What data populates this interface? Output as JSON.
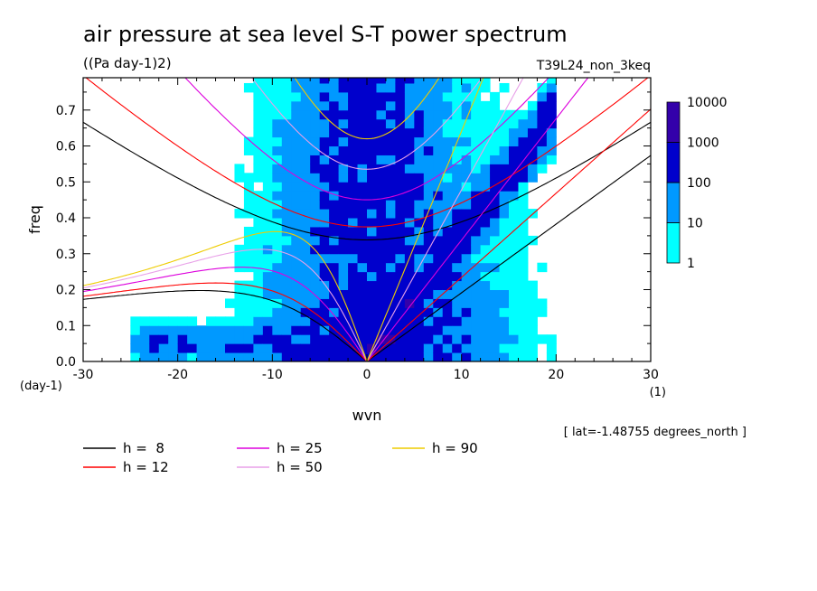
{
  "chart_data": {
    "type": "heatmap",
    "title": "air pressure at sea level S-T power spectrum",
    "subtitle": "((Pa day-1)2)",
    "run_label": "T39L24_non_3keq",
    "xlabel": "wvn",
    "x_unit": "(1)",
    "ylabel": "freq",
    "y_unit": "(day-1)",
    "xlim": [
      -30,
      30
    ],
    "ylim": [
      0,
      0.79
    ],
    "x_ticks": [
      "-30",
      "-20",
      "-10",
      "0",
      "10",
      "20",
      "30"
    ],
    "y_ticks": [
      "0.0",
      "0.1",
      "0.2",
      "0.3",
      "0.4",
      "0.5",
      "0.6",
      "0.7"
    ],
    "colorbar": {
      "labels": [
        "1",
        "10",
        "100",
        "1000",
        "10000"
      ],
      "colors": [
        "#00ffff",
        "#0099ff",
        "#0000cc",
        "#3300aa"
      ]
    },
    "footnote": "[ lat=-1.48755 degrees_north ]",
    "dispersion_curves": [
      {
        "name": "h =  8",
        "h": 8,
        "color": "#000000"
      },
      {
        "name": "h = 12",
        "h": 12,
        "color": "#ff0000"
      },
      {
        "name": "h = 25",
        "h": 25,
        "color": "#dd00dd"
      },
      {
        "name": "h = 50",
        "h": 50,
        "color": "#e8a0e8"
      },
      {
        "name": "h = 90",
        "h": 90,
        "color": "#eecc00"
      }
    ]
  }
}
